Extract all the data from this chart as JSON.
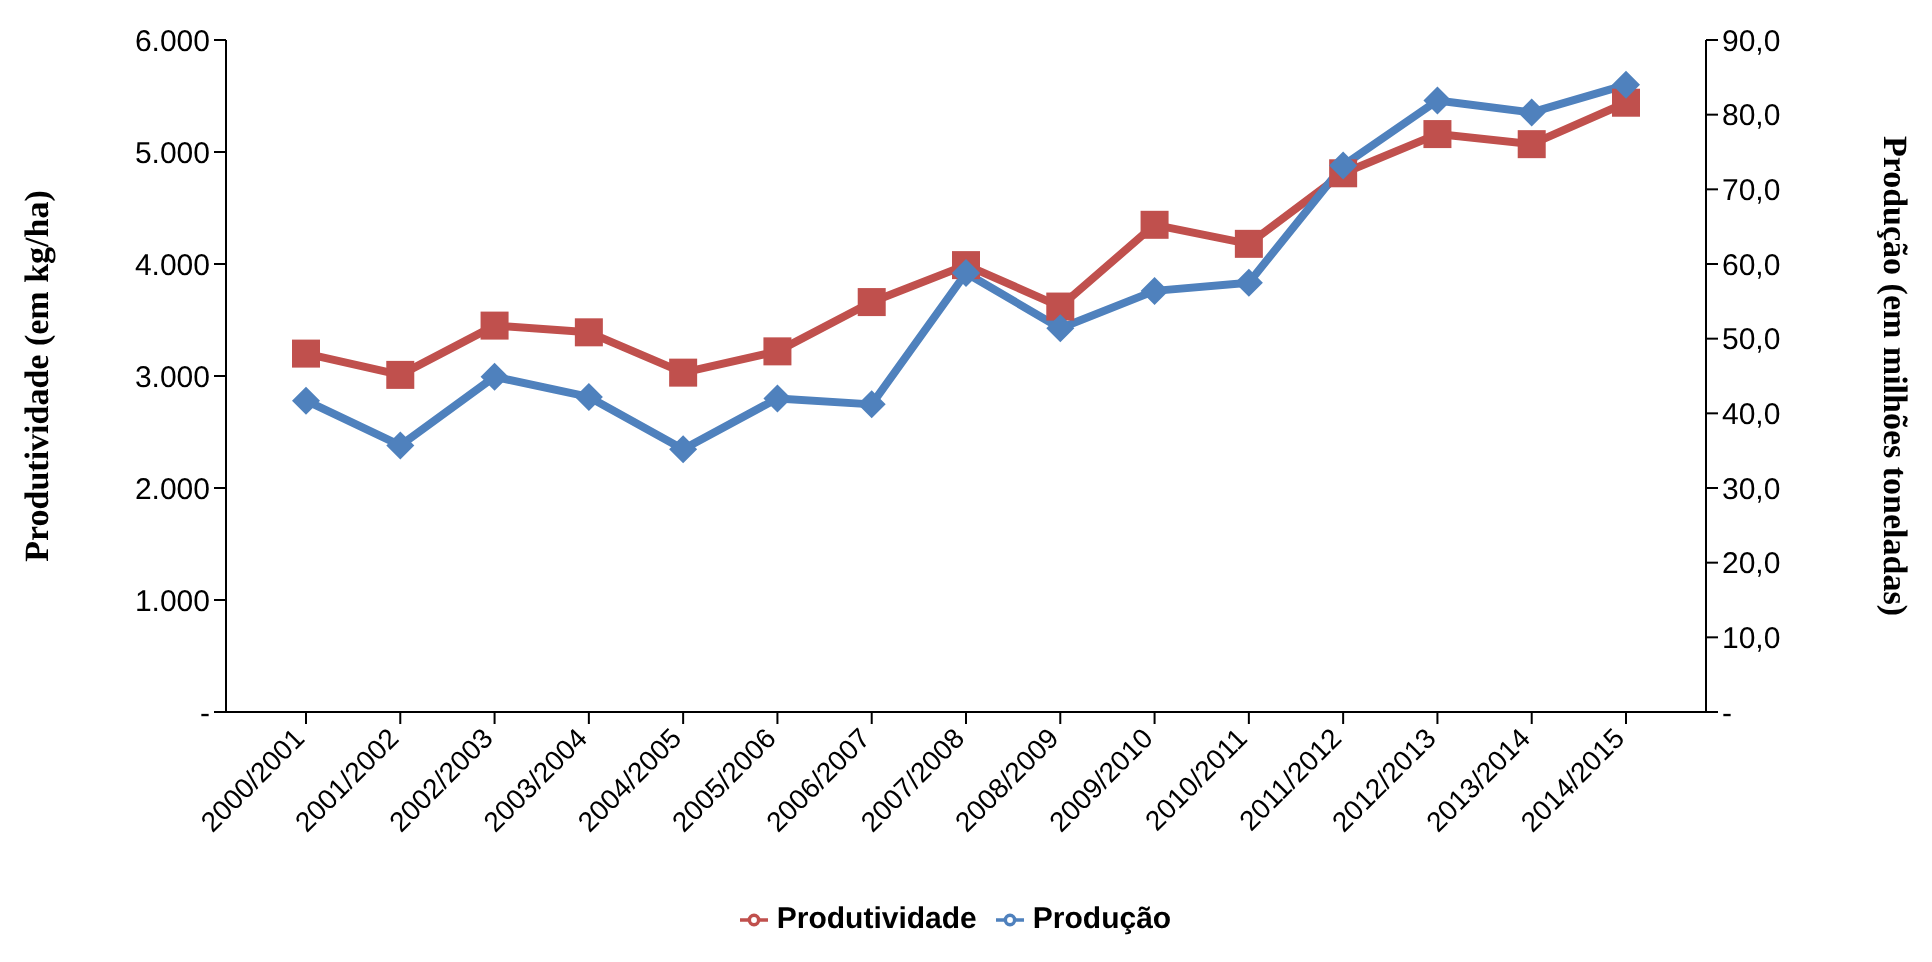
{
  "chart_data": {
    "type": "line",
    "categories": [
      "2000/2001",
      "2001/2002",
      "2002/2003",
      "2003/2004",
      "2004/2005",
      "2005/2006",
      "2006/2007",
      "2007/2008",
      "2008/2009",
      "2009/2010",
      "2010/2011",
      "2011/2012",
      "2012/2013",
      "2013/2014",
      "2014/2015"
    ],
    "series": [
      {
        "name": "Produtividade",
        "color": "#c0504d",
        "marker": "square",
        "values": [
          3200,
          3010,
          3450,
          3390,
          3030,
          3220,
          3660,
          3990,
          3620,
          4350,
          4180,
          4810,
          5160,
          5070,
          5440
        ]
      },
      {
        "name": "Produção",
        "color": "#4f81bd",
        "marker": "diamond",
        "axis": "y2",
        "values": [
          41.7,
          35.7,
          44.9,
          42.2,
          35.2,
          42.0,
          41.2,
          58.8,
          51.4,
          56.4,
          57.5,
          73.2,
          81.9,
          80.3,
          84.0
        ]
      }
    ],
    "ylabel": "Produtividade (em kg/ha)",
    "y2label": "Produção (em milhões toneladas)",
    "ylim": [
      0,
      6000
    ],
    "yticks": [
      {
        "value": 0,
        "label": "-"
      },
      {
        "value": 1000,
        "label": "1.000"
      },
      {
        "value": 2000,
        "label": "2.000"
      },
      {
        "value": 3000,
        "label": "3.000"
      },
      {
        "value": 4000,
        "label": "4.000"
      },
      {
        "value": 5000,
        "label": "5.000"
      },
      {
        "value": 6000,
        "label": "6.000"
      }
    ],
    "y2lim": [
      0,
      90
    ],
    "y2ticks": [
      {
        "value": 0,
        "label": "-"
      },
      {
        "value": 10,
        "label": "10,0"
      },
      {
        "value": 20,
        "label": "20,0"
      },
      {
        "value": 30,
        "label": "30,0"
      },
      {
        "value": 40,
        "label": "40,0"
      },
      {
        "value": 50,
        "label": "50,0"
      },
      {
        "value": 60,
        "label": "60,0"
      },
      {
        "value": 70,
        "label": "70,0"
      },
      {
        "value": 80,
        "label": "80,0"
      },
      {
        "value": 90,
        "label": "90,0"
      }
    ],
    "grid": false,
    "legend": "bottom",
    "line_style": "solid"
  }
}
